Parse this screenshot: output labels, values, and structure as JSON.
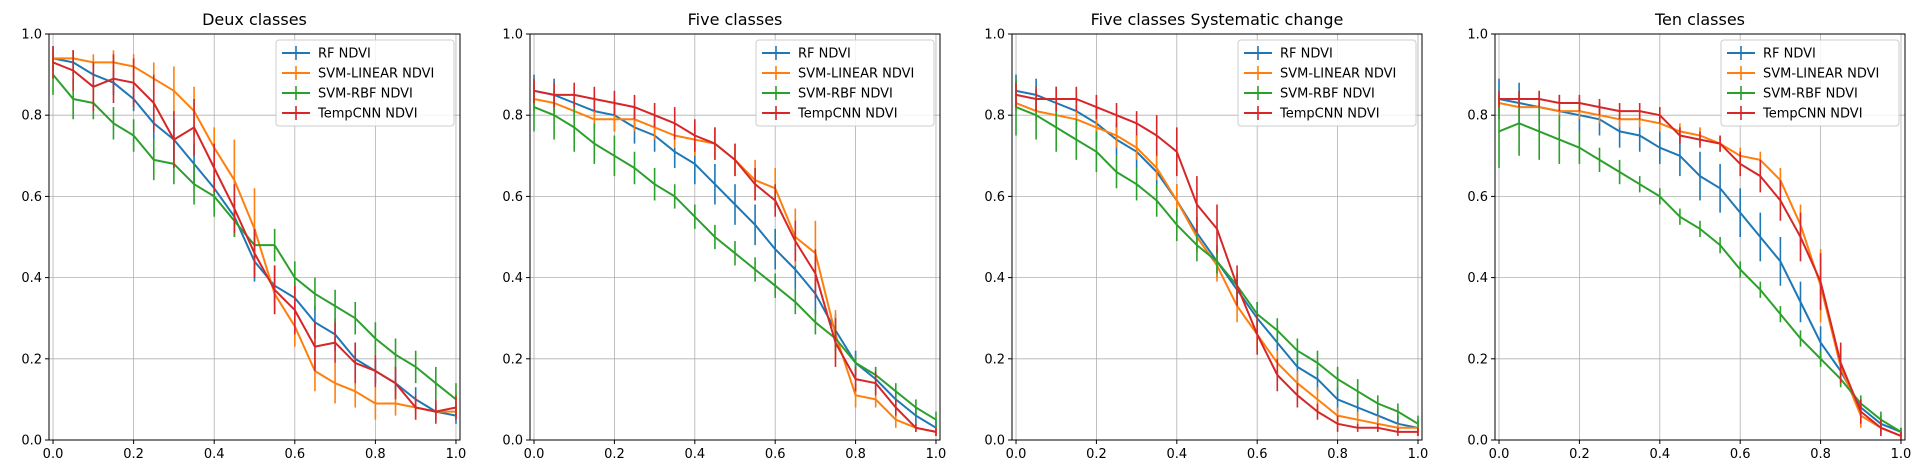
{
  "chart_data": [
    {
      "type": "line",
      "title": "Deux classes",
      "x": [
        0.0,
        0.05,
        0.1,
        0.15,
        0.2,
        0.25,
        0.3,
        0.35,
        0.4,
        0.45,
        0.5,
        0.55,
        0.6,
        0.65,
        0.7,
        0.75,
        0.8,
        0.85,
        0.9,
        0.95,
        1.0
      ],
      "xlim": [
        -0.01,
        1.01
      ],
      "ylim": [
        0,
        1
      ],
      "xticks": [
        "0.0",
        "0.2",
        "0.4",
        "0.6",
        "0.8",
        "1.0"
      ],
      "yticks": [
        "0.0",
        "0.2",
        "0.4",
        "0.6",
        "0.8",
        "1.0"
      ],
      "grid": true,
      "legend_position": "top-right",
      "series": [
        {
          "name": "RF NDVI",
          "color": "#1f77b4",
          "values": [
            0.94,
            0.93,
            0.9,
            0.88,
            0.84,
            0.78,
            0.74,
            0.68,
            0.62,
            0.55,
            0.44,
            0.38,
            0.35,
            0.29,
            0.26,
            0.2,
            0.17,
            0.14,
            0.1,
            0.07,
            0.06
          ],
          "errors": [
            0.03,
            0.03,
            0.03,
            0.03,
            0.03,
            0.04,
            0.05,
            0.05,
            0.05,
            0.05,
            0.05,
            0.05,
            0.04,
            0.04,
            0.04,
            0.04,
            0.03,
            0.03,
            0.03,
            0.02,
            0.02
          ]
        },
        {
          "name": "SVM-LINEAR NDVI",
          "color": "#ff7f0e",
          "values": [
            0.94,
            0.94,
            0.93,
            0.93,
            0.92,
            0.89,
            0.86,
            0.81,
            0.72,
            0.64,
            0.52,
            0.36,
            0.28,
            0.17,
            0.14,
            0.12,
            0.09,
            0.09,
            0.08,
            0.07,
            0.07
          ],
          "errors": [
            0.02,
            0.02,
            0.02,
            0.03,
            0.03,
            0.04,
            0.06,
            0.06,
            0.05,
            0.1,
            0.1,
            0.05,
            0.05,
            0.05,
            0.05,
            0.04,
            0.04,
            0.03,
            0.03,
            0.02,
            0.02
          ]
        },
        {
          "name": "SVM-RBF NDVI",
          "color": "#2ca02c",
          "values": [
            0.9,
            0.84,
            0.83,
            0.78,
            0.75,
            0.69,
            0.68,
            0.63,
            0.6,
            0.54,
            0.48,
            0.48,
            0.4,
            0.36,
            0.33,
            0.3,
            0.25,
            0.21,
            0.18,
            0.14,
            0.1
          ],
          "errors": [
            0.05,
            0.05,
            0.04,
            0.04,
            0.04,
            0.05,
            0.05,
            0.05,
            0.05,
            0.04,
            0.04,
            0.04,
            0.04,
            0.04,
            0.04,
            0.04,
            0.04,
            0.04,
            0.04,
            0.04,
            0.04
          ]
        },
        {
          "name": "TempCNN NDVI",
          "color": "#d62728",
          "values": [
            0.93,
            0.91,
            0.87,
            0.89,
            0.88,
            0.83,
            0.74,
            0.77,
            0.67,
            0.57,
            0.46,
            0.37,
            0.32,
            0.23,
            0.24,
            0.19,
            0.17,
            0.14,
            0.08,
            0.07,
            0.08
          ],
          "errors": [
            0.04,
            0.05,
            0.06,
            0.06,
            0.06,
            0.07,
            0.07,
            0.07,
            0.06,
            0.06,
            0.06,
            0.06,
            0.06,
            0.06,
            0.05,
            0.05,
            0.04,
            0.04,
            0.03,
            0.03,
            0.03
          ]
        }
      ]
    },
    {
      "type": "line",
      "title": "Five classes",
      "x": [
        0.0,
        0.05,
        0.1,
        0.15,
        0.2,
        0.25,
        0.3,
        0.35,
        0.4,
        0.45,
        0.5,
        0.55,
        0.6,
        0.65,
        0.7,
        0.75,
        0.8,
        0.85,
        0.9,
        0.95,
        1.0
      ],
      "xlim": [
        -0.01,
        1.01
      ],
      "ylim": [
        0,
        1
      ],
      "xticks": [
        "0.0",
        "0.2",
        "0.4",
        "0.6",
        "0.8",
        "1.0"
      ],
      "yticks": [
        "0.0",
        "0.2",
        "0.4",
        "0.6",
        "0.8",
        "1.0"
      ],
      "grid": true,
      "legend_position": "top-right",
      "series": [
        {
          "name": "RF NDVI",
          "color": "#1f77b4",
          "values": [
            0.86,
            0.85,
            0.83,
            0.81,
            0.8,
            0.77,
            0.75,
            0.71,
            0.68,
            0.63,
            0.58,
            0.53,
            0.47,
            0.42,
            0.36,
            0.27,
            0.19,
            0.15,
            0.1,
            0.06,
            0.03
          ],
          "errors": [
            0.04,
            0.04,
            0.04,
            0.04,
            0.04,
            0.04,
            0.04,
            0.04,
            0.05,
            0.05,
            0.05,
            0.05,
            0.05,
            0.05,
            0.05,
            0.04,
            0.03,
            0.03,
            0.02,
            0.02,
            0.02
          ]
        },
        {
          "name": "SVM-LINEAR NDVI",
          "color": "#ff7f0e",
          "values": [
            0.84,
            0.83,
            0.81,
            0.79,
            0.79,
            0.79,
            0.77,
            0.75,
            0.74,
            0.73,
            0.69,
            0.64,
            0.62,
            0.5,
            0.46,
            0.26,
            0.11,
            0.1,
            0.05,
            0.03,
            0.02
          ],
          "errors": [
            0.03,
            0.03,
            0.03,
            0.03,
            0.03,
            0.03,
            0.03,
            0.03,
            0.04,
            0.04,
            0.04,
            0.05,
            0.05,
            0.07,
            0.08,
            0.06,
            0.03,
            0.02,
            0.02,
            0.01,
            0.01
          ]
        },
        {
          "name": "SVM-RBF NDVI",
          "color": "#2ca02c",
          "values": [
            0.82,
            0.8,
            0.77,
            0.73,
            0.7,
            0.67,
            0.63,
            0.6,
            0.55,
            0.5,
            0.46,
            0.42,
            0.38,
            0.34,
            0.29,
            0.25,
            0.19,
            0.16,
            0.12,
            0.08,
            0.05
          ],
          "errors": [
            0.06,
            0.06,
            0.06,
            0.05,
            0.05,
            0.04,
            0.04,
            0.03,
            0.03,
            0.03,
            0.03,
            0.03,
            0.03,
            0.03,
            0.03,
            0.03,
            0.02,
            0.02,
            0.02,
            0.02,
            0.02
          ]
        },
        {
          "name": "TempCNN NDVI",
          "color": "#d62728",
          "values": [
            0.86,
            0.85,
            0.85,
            0.84,
            0.83,
            0.82,
            0.8,
            0.78,
            0.75,
            0.73,
            0.69,
            0.63,
            0.59,
            0.49,
            0.41,
            0.24,
            0.15,
            0.14,
            0.08,
            0.03,
            0.02
          ],
          "errors": [
            0.03,
            0.03,
            0.03,
            0.03,
            0.03,
            0.03,
            0.03,
            0.04,
            0.04,
            0.04,
            0.04,
            0.04,
            0.04,
            0.05,
            0.06,
            0.06,
            0.03,
            0.03,
            0.02,
            0.01,
            0.01
          ]
        }
      ]
    },
    {
      "type": "line",
      "title": "Five classes Systematic change",
      "x": [
        0.0,
        0.05,
        0.1,
        0.15,
        0.2,
        0.25,
        0.3,
        0.35,
        0.4,
        0.45,
        0.5,
        0.55,
        0.6,
        0.65,
        0.7,
        0.75,
        0.8,
        0.85,
        0.9,
        0.95,
        1.0
      ],
      "xlim": [
        -0.01,
        1.01
      ],
      "ylim": [
        0,
        1
      ],
      "xticks": [
        "0.0",
        "0.2",
        "0.4",
        "0.6",
        "0.8",
        "1.0"
      ],
      "yticks": [
        "0.0",
        "0.2",
        "0.4",
        "0.6",
        "0.8",
        "1.0"
      ],
      "grid": true,
      "legend_position": "top-right",
      "series": [
        {
          "name": "RF NDVI",
          "color": "#1f77b4",
          "values": [
            0.86,
            0.85,
            0.83,
            0.81,
            0.78,
            0.74,
            0.71,
            0.66,
            0.59,
            0.51,
            0.44,
            0.37,
            0.3,
            0.24,
            0.18,
            0.15,
            0.1,
            0.08,
            0.06,
            0.04,
            0.03
          ],
          "errors": [
            0.04,
            0.04,
            0.04,
            0.04,
            0.04,
            0.04,
            0.04,
            0.04,
            0.04,
            0.04,
            0.04,
            0.04,
            0.04,
            0.04,
            0.04,
            0.03,
            0.03,
            0.02,
            0.02,
            0.02,
            0.02
          ]
        },
        {
          "name": "SVM-LINEAR NDVI",
          "color": "#ff7f0e",
          "values": [
            0.83,
            0.81,
            0.8,
            0.79,
            0.77,
            0.75,
            0.72,
            0.67,
            0.59,
            0.5,
            0.43,
            0.33,
            0.26,
            0.19,
            0.14,
            0.1,
            0.06,
            0.05,
            0.04,
            0.03,
            0.03
          ],
          "errors": [
            0.02,
            0.02,
            0.02,
            0.02,
            0.02,
            0.03,
            0.03,
            0.03,
            0.04,
            0.04,
            0.04,
            0.04,
            0.04,
            0.03,
            0.03,
            0.03,
            0.02,
            0.02,
            0.02,
            0.01,
            0.01
          ]
        },
        {
          "name": "SVM-RBF NDVI",
          "color": "#2ca02c",
          "values": [
            0.82,
            0.8,
            0.77,
            0.74,
            0.71,
            0.66,
            0.63,
            0.59,
            0.53,
            0.48,
            0.44,
            0.38,
            0.31,
            0.27,
            0.22,
            0.19,
            0.15,
            0.12,
            0.09,
            0.07,
            0.04
          ],
          "errors": [
            0.07,
            0.06,
            0.06,
            0.05,
            0.05,
            0.04,
            0.04,
            0.04,
            0.04,
            0.04,
            0.03,
            0.03,
            0.03,
            0.03,
            0.03,
            0.03,
            0.03,
            0.03,
            0.02,
            0.02,
            0.02
          ]
        },
        {
          "name": "TempCNN NDVI",
          "color": "#d62728",
          "values": [
            0.85,
            0.84,
            0.84,
            0.84,
            0.82,
            0.8,
            0.78,
            0.75,
            0.71,
            0.58,
            0.52,
            0.38,
            0.26,
            0.16,
            0.11,
            0.07,
            0.04,
            0.03,
            0.03,
            0.02,
            0.02
          ],
          "errors": [
            0.03,
            0.03,
            0.03,
            0.03,
            0.03,
            0.03,
            0.03,
            0.05,
            0.06,
            0.07,
            0.06,
            0.05,
            0.05,
            0.04,
            0.03,
            0.02,
            0.02,
            0.01,
            0.01,
            0.01,
            0.01
          ]
        }
      ]
    },
    {
      "type": "line",
      "title": "Ten classes",
      "x": [
        0.0,
        0.05,
        0.1,
        0.15,
        0.2,
        0.25,
        0.3,
        0.35,
        0.4,
        0.45,
        0.5,
        0.55,
        0.6,
        0.65,
        0.7,
        0.75,
        0.8,
        0.85,
        0.9,
        0.95,
        1.0
      ],
      "xlim": [
        -0.01,
        1.01
      ],
      "ylim": [
        0,
        1
      ],
      "xticks": [
        "0.0",
        "0.2",
        "0.4",
        "0.6",
        "0.8",
        "1.0"
      ],
      "yticks": [
        "0.0",
        "0.2",
        "0.4",
        "0.6",
        "0.8",
        "1.0"
      ],
      "grid": true,
      "legend_position": "top-right",
      "series": [
        {
          "name": "RF NDVI",
          "color": "#1f77b4",
          "values": [
            0.84,
            0.83,
            0.82,
            0.81,
            0.8,
            0.79,
            0.76,
            0.75,
            0.72,
            0.7,
            0.65,
            0.62,
            0.56,
            0.5,
            0.44,
            0.34,
            0.24,
            0.17,
            0.08,
            0.04,
            0.02
          ],
          "errors": [
            0.05,
            0.05,
            0.04,
            0.04,
            0.04,
            0.04,
            0.04,
            0.04,
            0.04,
            0.05,
            0.06,
            0.06,
            0.06,
            0.06,
            0.06,
            0.05,
            0.04,
            0.03,
            0.02,
            0.02,
            0.01
          ]
        },
        {
          "name": "SVM-LINEAR NDVI",
          "color": "#ff7f0e",
          "values": [
            0.83,
            0.82,
            0.82,
            0.81,
            0.81,
            0.8,
            0.79,
            0.79,
            0.78,
            0.76,
            0.75,
            0.73,
            0.7,
            0.69,
            0.64,
            0.53,
            0.38,
            0.18,
            0.06,
            0.03,
            0.01
          ],
          "errors": [
            0.02,
            0.02,
            0.02,
            0.02,
            0.02,
            0.02,
            0.02,
            0.02,
            0.02,
            0.02,
            0.02,
            0.02,
            0.02,
            0.02,
            0.03,
            0.05,
            0.09,
            0.05,
            0.03,
            0.02,
            0.01
          ]
        },
        {
          "name": "SVM-RBF NDVI",
          "color": "#2ca02c",
          "values": [
            0.76,
            0.78,
            0.76,
            0.74,
            0.72,
            0.69,
            0.66,
            0.63,
            0.6,
            0.55,
            0.52,
            0.48,
            0.42,
            0.37,
            0.31,
            0.25,
            0.2,
            0.15,
            0.09,
            0.05,
            0.02
          ],
          "errors": [
            0.09,
            0.08,
            0.07,
            0.06,
            0.04,
            0.03,
            0.03,
            0.02,
            0.02,
            0.02,
            0.02,
            0.02,
            0.02,
            0.02,
            0.02,
            0.02,
            0.02,
            0.02,
            0.02,
            0.02,
            0.01
          ]
        },
        {
          "name": "TempCNN NDVI",
          "color": "#d62728",
          "values": [
            0.84,
            0.84,
            0.84,
            0.83,
            0.83,
            0.82,
            0.81,
            0.81,
            0.8,
            0.75,
            0.74,
            0.73,
            0.68,
            0.65,
            0.59,
            0.5,
            0.39,
            0.19,
            0.07,
            0.03,
            0.01
          ],
          "errors": [
            0.02,
            0.02,
            0.02,
            0.02,
            0.02,
            0.02,
            0.02,
            0.02,
            0.02,
            0.02,
            0.02,
            0.02,
            0.03,
            0.04,
            0.05,
            0.06,
            0.07,
            0.05,
            0.03,
            0.02,
            0.01
          ]
        }
      ]
    }
  ]
}
